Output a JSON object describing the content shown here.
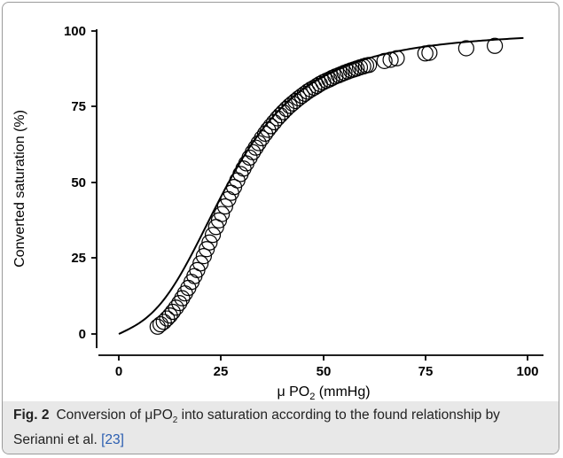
{
  "figure": {
    "caption_label": "Fig. 2",
    "caption_text_1": "Conversion of μPO",
    "caption_sub": "2",
    "caption_text_2": " into saturation according to the found relationship by Serianni et al. ",
    "caption_ref": "[23]"
  },
  "chart_data": {
    "type": "scatter",
    "xlabel_main": "μ PO",
    "xlabel_sub": "2",
    "xlabel_tail": " (mmHg)",
    "ylabel": "Converted saturation (%)",
    "xlim": [
      -5,
      103
    ],
    "ylim": [
      -6,
      101
    ],
    "x_ticks": [
      0,
      25,
      50,
      75,
      100
    ],
    "y_ticks": [
      0,
      25,
      50,
      75,
      100
    ],
    "x_tick_labels": [
      "0",
      "25",
      "50",
      "75",
      "100"
    ],
    "y_tick_labels": [
      "0",
      "25",
      "50",
      "75",
      "100"
    ],
    "grid": false,
    "marker": "open-circle",
    "fit_curve": {
      "model": "Severinghaus-type saturation curve",
      "x_range": [
        0,
        99
      ]
    },
    "points": {
      "x": [
        9.5,
        10.2,
        11.0,
        11.8,
        12.5,
        13.2,
        14.0,
        14.8,
        15.5,
        16.2,
        17.0,
        17.8,
        18.5,
        19.2,
        20.0,
        20.8,
        21.5,
        22.2,
        23.0,
        23.8,
        24.5,
        25.2,
        26.0,
        26.8,
        27.5,
        28.2,
        29.0,
        29.8,
        30.5,
        31.2,
        32.0,
        32.8,
        33.5,
        34.2,
        35.0,
        35.8,
        36.5,
        37.2,
        38.0,
        38.8,
        39.5,
        40.2,
        41.0,
        41.8,
        42.5,
        43.2,
        44.0,
        44.8,
        45.5,
        46.2,
        47.0,
        47.8,
        48.5,
        49.2,
        50.0,
        50.8,
        51.5,
        52.2,
        53.0,
        53.8,
        54.5,
        55.2,
        56.0,
        56.8,
        57.5,
        58.2,
        59.0,
        59.8,
        60.5,
        61.2,
        65.0,
        66.5,
        68.0,
        75.0,
        76.0,
        85.0,
        92.0
      ],
      "y": [
        2.4,
        3.2,
        4.0,
        5.1,
        6.1,
        7.3,
        8.7,
        10.2,
        11.8,
        13.4,
        15.2,
        17.2,
        19.1,
        21.1,
        23.3,
        25.7,
        28.0,
        30.2,
        32.7,
        35.3,
        37.5,
        39.6,
        42.1,
        44.5,
        46.6,
        48.5,
        50.7,
        52.8,
        54.6,
        56.3,
        58.2,
        60.0,
        61.5,
        63.0,
        64.6,
        66.1,
        67.4,
        68.6,
        69.9,
        71.2,
        72.2,
        73.2,
        74.3,
        75.3,
        76.1,
        76.9,
        77.8,
        78.6,
        79.3,
        80.0,
        80.7,
        81.3,
        81.9,
        82.5,
        83.1,
        83.6,
        84.0,
        84.5,
        85.0,
        85.4,
        85.8,
        86.2,
        86.6,
        87.0,
        87.3,
        87.6,
        88.0,
        88.3,
        88.6,
        88.8,
        90.1,
        90.5,
        91.0,
        92.6,
        92.8,
        94.3,
        95.1
      ]
    }
  }
}
